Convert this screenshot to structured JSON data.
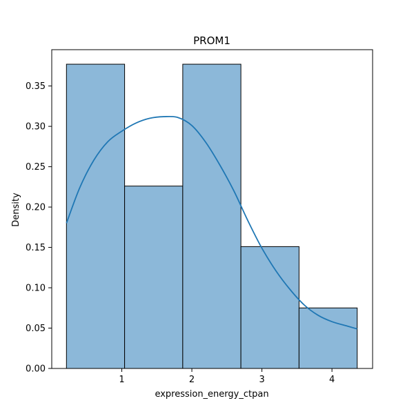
{
  "chart_data": {
    "type": "bar",
    "title": "PROM1",
    "xlabel": "expression_energy_ctpan",
    "ylabel": "Density",
    "xlim": [
      0.0,
      4.58
    ],
    "ylim": [
      0,
      0.395
    ],
    "x_ticks": [
      1,
      2,
      3,
      4
    ],
    "y_ticks": [
      0.0,
      0.05,
      0.1,
      0.15,
      0.2,
      0.25,
      0.3,
      0.35
    ],
    "y_tick_labels": [
      "0.00",
      "0.05",
      "0.10",
      "0.15",
      "0.20",
      "0.25",
      "0.30",
      "0.35"
    ],
    "bins": [
      {
        "x0": 0.21,
        "x1": 1.04,
        "density": 0.377
      },
      {
        "x0": 1.04,
        "x1": 1.87,
        "density": 0.226
      },
      {
        "x0": 1.87,
        "x1": 2.7,
        "density": 0.377
      },
      {
        "x0": 2.7,
        "x1": 3.53,
        "density": 0.151
      },
      {
        "x0": 3.53,
        "x1": 4.36,
        "density": 0.075
      }
    ],
    "kde": {
      "x": [
        0.21,
        0.4,
        0.6,
        0.8,
        1.0,
        1.2,
        1.4,
        1.6,
        1.8,
        2.0,
        2.2,
        2.4,
        2.6,
        2.8,
        3.0,
        3.2,
        3.4,
        3.6,
        3.8,
        4.0,
        4.2,
        4.36
      ],
      "y": [
        0.18,
        0.224,
        0.258,
        0.281,
        0.294,
        0.304,
        0.31,
        0.312,
        0.311,
        0.301,
        0.28,
        0.252,
        0.22,
        0.183,
        0.149,
        0.121,
        0.098,
        0.079,
        0.066,
        0.058,
        0.053,
        0.049
      ]
    },
    "colors": {
      "bar_fill": "#8cb8d9",
      "bar_edge": "#000000",
      "kde_line": "#1f77b4"
    },
    "grid": false,
    "legend": "none"
  }
}
